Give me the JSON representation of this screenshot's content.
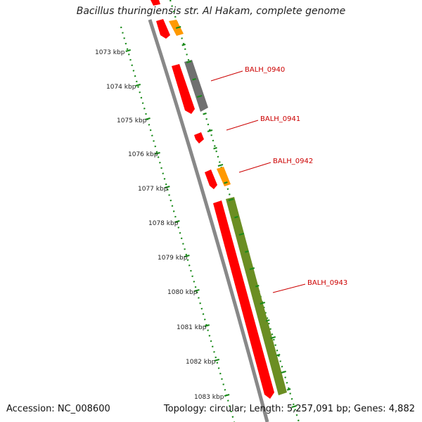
{
  "title": "Bacillus thuringiensis str. Al Hakam, complete genome",
  "footer": {
    "accession": "Accession: NC_008600",
    "stats": "Topology: circular; Length: 5,257,091 bp; Genes: 4,882"
  },
  "ticks": [
    "1073 kbp",
    "1074 kbp",
    "1075 kbp",
    "1076 kbp",
    "1077 kbp",
    "1078 kbp",
    "1079 kbp",
    "1080 kbp",
    "1081 kbp",
    "1082 kbp",
    "1083 kbp"
  ],
  "gene_labels": [
    "BALH_0940",
    "BALH_0941",
    "BALH_0942",
    "BALH_0943"
  ],
  "colors": {
    "cds_red": "#ff0000",
    "cds_orange": "#ff9900",
    "cds_gray": "#707070",
    "cds_olive": "#6b8e23",
    "backbone": "#888888",
    "tick_green": "#1a8a1a",
    "label_red": "#cc0000"
  }
}
